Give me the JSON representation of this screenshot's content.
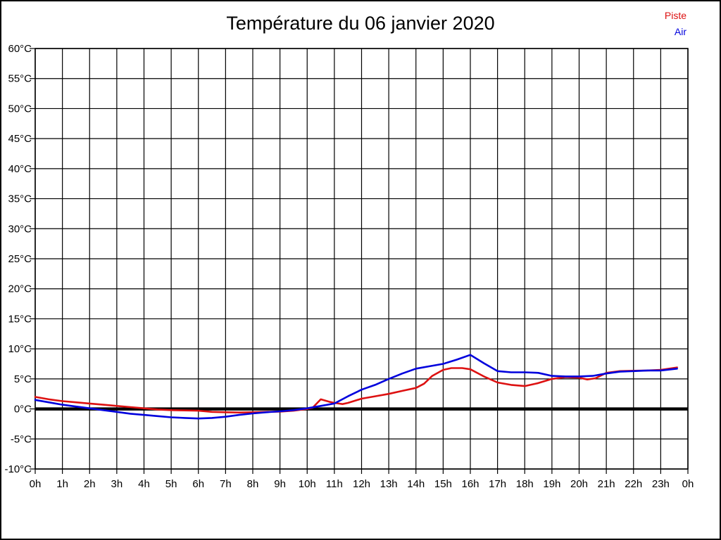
{
  "page": {
    "background": "#ffffff",
    "border_color": "#000000"
  },
  "title": "Température du 06 janvier 2020",
  "legend": {
    "position": "top-right",
    "items": [
      {
        "label": "Piste",
        "color": "#dd1111"
      },
      {
        "label": "Air",
        "color": "#0000dd"
      }
    ]
  },
  "chart_data": {
    "type": "line",
    "title": "Température du 06 janvier 2020",
    "xlabel": "",
    "ylabel": "",
    "x_unit": "hour of day",
    "y_unit": "°C",
    "xlim": [
      0,
      24
    ],
    "ylim": [
      -10,
      60
    ],
    "x_tick_step": 1,
    "y_tick_step": 5,
    "grid": true,
    "grid_color": "#000000",
    "zero_line": true,
    "zero_line_value": 0,
    "legend_position": "top-right",
    "x_tick_labels": [
      "0h",
      "1h",
      "2h",
      "3h",
      "4h",
      "5h",
      "6h",
      "7h",
      "8h",
      "9h",
      "10h",
      "11h",
      "12h",
      "13h",
      "14h",
      "15h",
      "16h",
      "17h",
      "18h",
      "19h",
      "20h",
      "21h",
      "22h",
      "23h",
      "0h"
    ],
    "y_tick_labels": [
      "-10°C",
      "-5°C",
      "0°C",
      "5°C",
      "10°C",
      "15°C",
      "20°C",
      "25°C",
      "30°C",
      "35°C",
      "40°C",
      "45°C",
      "50°C",
      "55°C",
      "60°C"
    ],
    "series": [
      {
        "name": "Piste",
        "color": "#dd1111",
        "points": [
          [
            0,
            2.0
          ],
          [
            0.5,
            1.6
          ],
          [
            1,
            1.3
          ],
          [
            1.5,
            1.1
          ],
          [
            2,
            0.9
          ],
          [
            2.5,
            0.7
          ],
          [
            3,
            0.5
          ],
          [
            3.5,
            0.3
          ],
          [
            4,
            0.1
          ],
          [
            4.5,
            -0.1
          ],
          [
            5,
            -0.2
          ],
          [
            5.5,
            -0.25
          ],
          [
            6,
            -0.3
          ],
          [
            6.5,
            -0.5
          ],
          [
            7,
            -0.55
          ],
          [
            7.5,
            -0.6
          ],
          [
            8,
            -0.55
          ],
          [
            8.5,
            -0.5
          ],
          [
            9,
            -0.45
          ],
          [
            9.5,
            -0.3
          ],
          [
            10,
            0.0
          ],
          [
            10.2,
            0.2
          ],
          [
            10.5,
            1.6
          ],
          [
            10.8,
            1.2
          ],
          [
            11,
            1.0
          ],
          [
            11.3,
            0.8
          ],
          [
            11.5,
            1.0
          ],
          [
            12,
            1.7
          ],
          [
            12.5,
            2.1
          ],
          [
            13,
            2.5
          ],
          [
            13.5,
            3.0
          ],
          [
            14,
            3.5
          ],
          [
            14.3,
            4.2
          ],
          [
            14.6,
            5.5
          ],
          [
            15,
            6.5
          ],
          [
            15.3,
            6.8
          ],
          [
            15.7,
            6.8
          ],
          [
            16,
            6.6
          ],
          [
            16.5,
            5.4
          ],
          [
            17,
            4.4
          ],
          [
            17.5,
            4.0
          ],
          [
            18,
            3.8
          ],
          [
            18.5,
            4.3
          ],
          [
            19,
            5.0
          ],
          [
            19.5,
            5.3
          ],
          [
            20,
            5.2
          ],
          [
            20.3,
            4.9
          ],
          [
            20.6,
            5.1
          ],
          [
            21,
            6.0
          ],
          [
            21.5,
            6.3
          ],
          [
            22,
            6.35
          ],
          [
            22.5,
            6.4
          ],
          [
            23,
            6.5
          ],
          [
            23.6,
            6.9
          ]
        ]
      },
      {
        "name": "Air",
        "color": "#0000dd",
        "points": [
          [
            0,
            1.5
          ],
          [
            0.5,
            1.1
          ],
          [
            1,
            0.7
          ],
          [
            1.5,
            0.4
          ],
          [
            2,
            0.1
          ],
          [
            2.5,
            -0.2
          ],
          [
            3,
            -0.5
          ],
          [
            3.5,
            -0.8
          ],
          [
            4,
            -1.0
          ],
          [
            4.5,
            -1.2
          ],
          [
            5,
            -1.4
          ],
          [
            5.5,
            -1.5
          ],
          [
            6,
            -1.6
          ],
          [
            6.5,
            -1.5
          ],
          [
            7,
            -1.3
          ],
          [
            7.5,
            -1.0
          ],
          [
            8,
            -0.75
          ],
          [
            8.5,
            -0.55
          ],
          [
            9,
            -0.4
          ],
          [
            9.5,
            -0.2
          ],
          [
            10,
            0.1
          ],
          [
            10.5,
            0.5
          ],
          [
            11,
            0.9
          ],
          [
            11.5,
            2.1
          ],
          [
            12,
            3.2
          ],
          [
            12.5,
            4.0
          ],
          [
            13,
            5.0
          ],
          [
            13.5,
            5.9
          ],
          [
            14,
            6.7
          ],
          [
            14.5,
            7.1
          ],
          [
            15,
            7.5
          ],
          [
            15.5,
            8.2
          ],
          [
            16,
            9.0
          ],
          [
            16.5,
            7.6
          ],
          [
            17,
            6.3
          ],
          [
            17.5,
            6.1
          ],
          [
            18,
            6.1
          ],
          [
            18.5,
            6.0
          ],
          [
            19,
            5.5
          ],
          [
            19.5,
            5.4
          ],
          [
            20,
            5.4
          ],
          [
            20.5,
            5.5
          ],
          [
            21,
            5.9
          ],
          [
            21.5,
            6.2
          ],
          [
            22,
            6.3
          ],
          [
            22.5,
            6.4
          ],
          [
            23,
            6.4
          ],
          [
            23.6,
            6.7
          ]
        ]
      }
    ]
  }
}
